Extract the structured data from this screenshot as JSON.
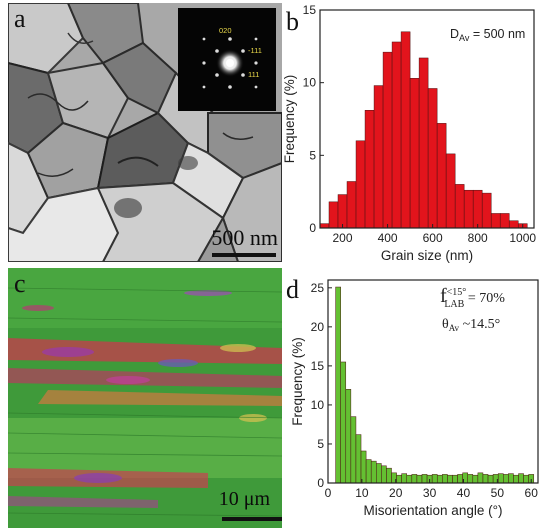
{
  "panels": {
    "a": {
      "letter": "a",
      "scale": "500 nm",
      "saed_labels": [
        "020",
        "-111",
        "111"
      ]
    },
    "b": {
      "letter": "b"
    },
    "c": {
      "letter": "c",
      "scale": "10 μm"
    },
    "d": {
      "letter": "d"
    }
  },
  "colors": {
    "bar_b": "#e2141c",
    "bar_d": "#64c032",
    "axis": "#222222",
    "ebsd_base": "#3f9a3a",
    "sem_base": "#a7a7a7"
  },
  "chart_data": [
    {
      "type": "bar",
      "panel": "b",
      "xlabel": "Grain size (nm)",
      "ylabel": "Frequency (%)",
      "xlim": [
        100,
        1050
      ],
      "ylim": [
        0,
        15
      ],
      "xticks": [
        200,
        400,
        600,
        800,
        1000
      ],
      "yticks": [
        0,
        5,
        10,
        15
      ],
      "annotation": {
        "main": "D",
        "sub": "Av",
        "tail": " = 500 nm"
      },
      "bin_width": 40,
      "x": [
        120,
        160,
        200,
        240,
        280,
        320,
        360,
        400,
        440,
        480,
        520,
        560,
        600,
        640,
        680,
        720,
        760,
        800,
        840,
        880,
        920,
        960,
        1000
      ],
      "values": [
        0.3,
        1.8,
        2.3,
        3.2,
        6.0,
        8.1,
        9.8,
        12.1,
        12.8,
        13.5,
        10.3,
        11.7,
        9.6,
        7.2,
        5.1,
        3.0,
        2.6,
        2.6,
        2.4,
        1.0,
        1.0,
        0.5,
        0.3
      ]
    },
    {
      "type": "bar",
      "panel": "d",
      "xlabel": "Misorientation angle (°)",
      "ylabel": "Frequency (%)",
      "xlim": [
        0,
        62
      ],
      "ylim": [
        0,
        26
      ],
      "xticks": [
        0,
        10,
        20,
        30,
        40,
        50,
        60
      ],
      "yticks": [
        0,
        5,
        10,
        15,
        20,
        25
      ],
      "annotation_line1": {
        "f": "f",
        "sup": "<15°",
        "sub": "LAB",
        "tail": " = 70%"
      },
      "annotation_line2": {
        "theta": "θ",
        "sub": "Av",
        "tail": " ~14.5°"
      },
      "bin_width": 1.5,
      "x": [
        3.0,
        4.5,
        6.0,
        7.5,
        9.0,
        10.5,
        12.0,
        13.5,
        15.0,
        16.5,
        18.0,
        19.5,
        21.0,
        22.5,
        24.0,
        25.5,
        27.0,
        28.5,
        30.0,
        31.5,
        33.0,
        34.5,
        36.0,
        37.5,
        39.0,
        40.5,
        42.0,
        43.5,
        45.0,
        46.5,
        48.0,
        49.5,
        51.0,
        52.5,
        54.0,
        55.5,
        57.0,
        58.5,
        60.0
      ],
      "values": [
        25.1,
        15.5,
        12.0,
        8.5,
        6.2,
        4.1,
        3.0,
        2.8,
        2.5,
        2.2,
        1.9,
        1.3,
        1.0,
        1.2,
        1.0,
        1.1,
        1.0,
        1.1,
        1.0,
        1.1,
        1.0,
        1.1,
        1.0,
        1.0,
        1.1,
        1.3,
        1.1,
        1.0,
        1.3,
        1.1,
        1.0,
        1.1,
        1.2,
        1.1,
        1.2,
        1.0,
        1.2,
        1.0,
        1.1
      ]
    }
  ]
}
